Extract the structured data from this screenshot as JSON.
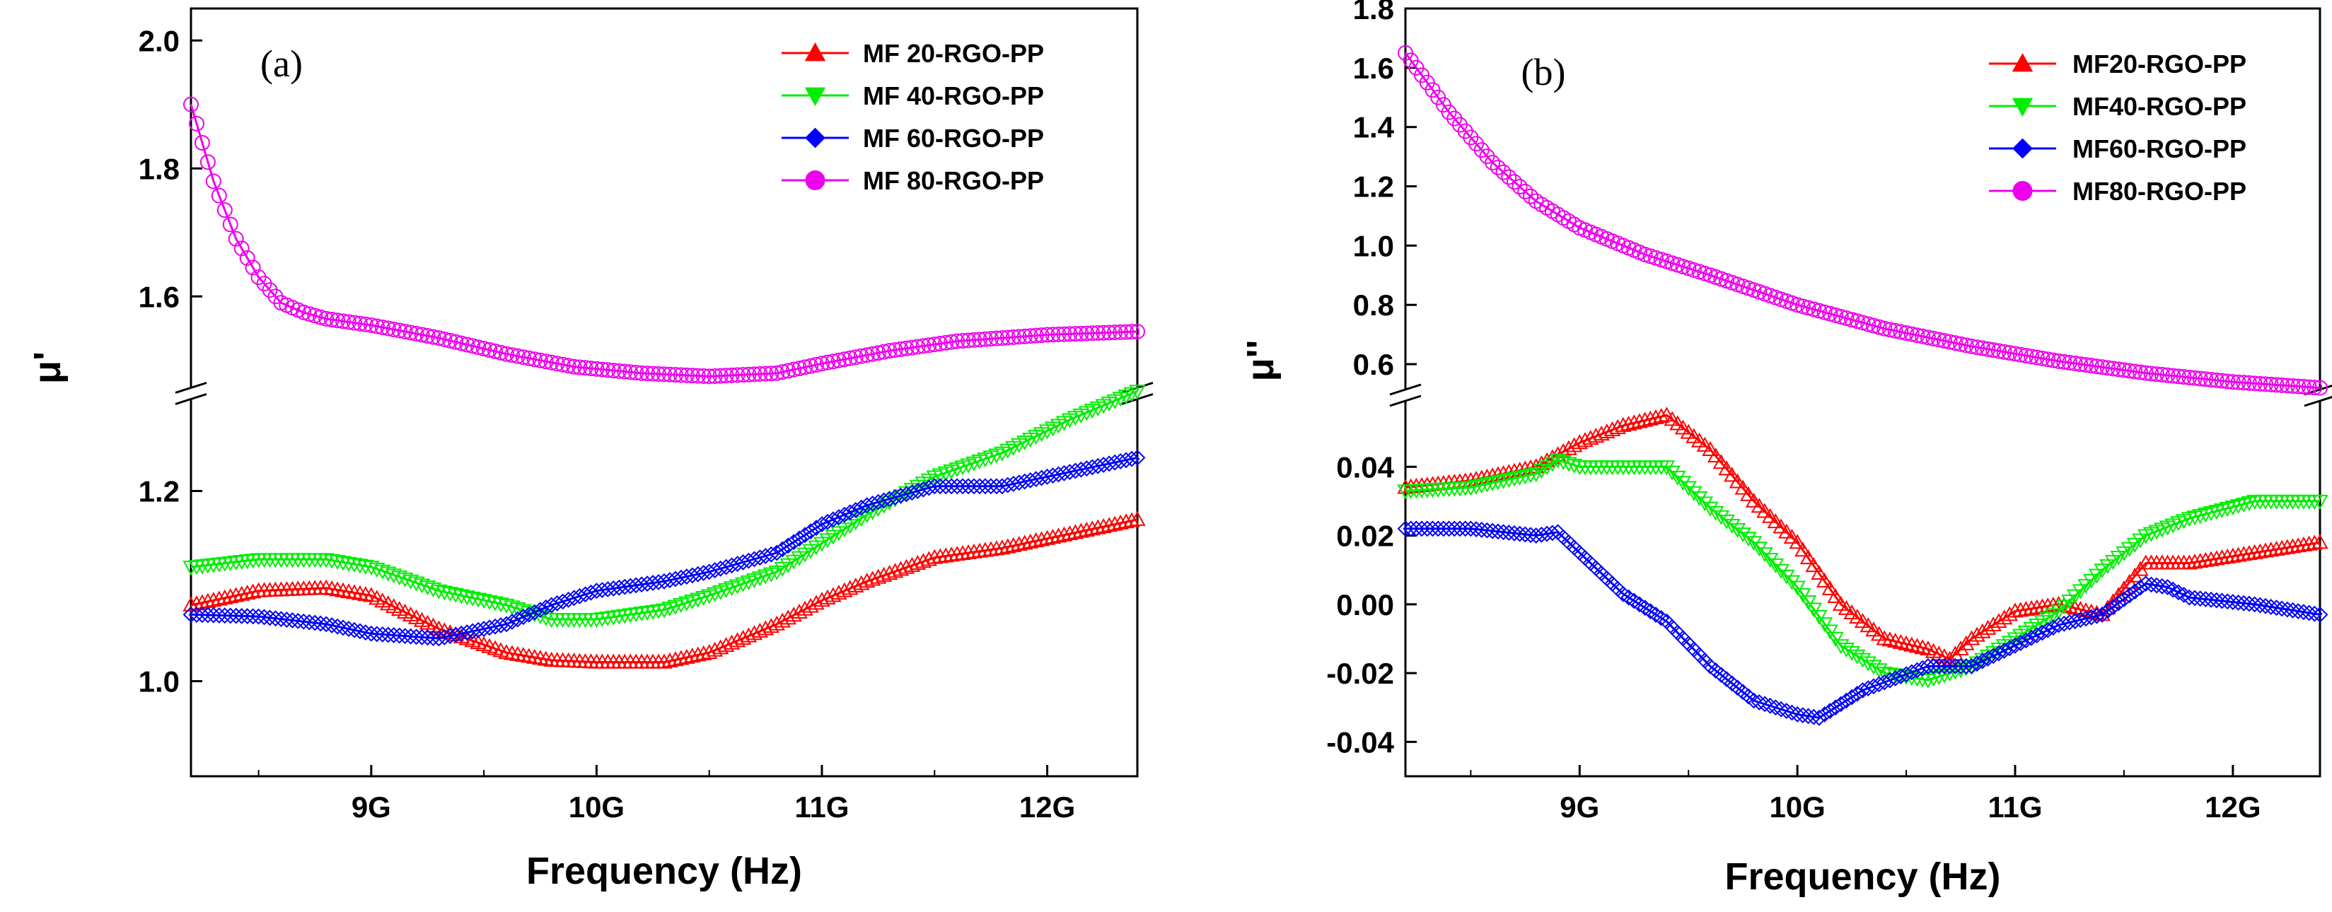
{
  "chart_data": [
    {
      "type": "line",
      "panel_label": "(a)",
      "ylabel": "μ'",
      "xlabel": "Frequency (Hz)",
      "xlim": [
        8.2,
        12.4
      ],
      "x_ticks": [
        9,
        10,
        11,
        12
      ],
      "x_tick_labels": [
        "9G",
        "10G",
        "11G",
        "12G"
      ],
      "axis_break": true,
      "upper_ylim": [
        1.45,
        2.05
      ],
      "upper_ticks": [
        1.6,
        1.8,
        2.0
      ],
      "upper_tick_labels": [
        "1.6",
        "1.8",
        "2.0"
      ],
      "lower_ylim": [
        0.9,
        1.3
      ],
      "lower_ticks": [
        1.0,
        1.2
      ],
      "lower_tick_labels": [
        "1.0",
        "1.2"
      ],
      "legend_position": "top-right",
      "series": [
        {
          "name": "MF 20-RGO-PP",
          "color": "#ff0000",
          "marker": "triangle-up",
          "x": [
            8.2,
            8.5,
            8.8,
            9.0,
            9.3,
            9.6,
            9.8,
            10.0,
            10.3,
            10.5,
            10.8,
            11.0,
            11.2,
            11.5,
            11.8,
            12.1,
            12.4
          ],
          "y": [
            1.08,
            1.095,
            1.098,
            1.09,
            1.055,
            1.03,
            1.022,
            1.02,
            1.02,
            1.03,
            1.06,
            1.085,
            1.105,
            1.13,
            1.14,
            1.155,
            1.17
          ]
        },
        {
          "name": "MF 40-RGO-PP",
          "color": "#00ee00",
          "marker": "triangle-down",
          "x": [
            8.2,
            8.5,
            8.8,
            9.0,
            9.3,
            9.6,
            9.8,
            10.0,
            10.3,
            10.5,
            10.8,
            11.0,
            11.2,
            11.5,
            11.8,
            12.1,
            12.4
          ],
          "y": [
            1.12,
            1.128,
            1.128,
            1.12,
            1.095,
            1.08,
            1.065,
            1.065,
            1.075,
            1.09,
            1.115,
            1.145,
            1.175,
            1.215,
            1.24,
            1.275,
            1.305
          ]
        },
        {
          "name": "MF 60-RGO-PP",
          "color": "#0000ff",
          "marker": "diamond-half",
          "x": [
            8.2,
            8.5,
            8.8,
            9.0,
            9.3,
            9.6,
            9.8,
            10.0,
            10.3,
            10.5,
            10.8,
            11.0,
            11.2,
            11.5,
            11.8,
            12.1,
            12.4
          ],
          "y": [
            1.07,
            1.068,
            1.06,
            1.05,
            1.045,
            1.06,
            1.08,
            1.095,
            1.105,
            1.115,
            1.135,
            1.165,
            1.185,
            1.205,
            1.205,
            1.22,
            1.235
          ]
        },
        {
          "name": "MF 80-RGO-PP",
          "color": "#ee00ee",
          "marker": "circle-half",
          "x": [
            8.2,
            8.3,
            8.4,
            8.5,
            8.6,
            8.7,
            8.8,
            9.0,
            9.3,
            9.6,
            9.9,
            10.2,
            10.5,
            10.8,
            11.0,
            11.3,
            11.6,
            12.0,
            12.4
          ],
          "y": [
            1.9,
            1.78,
            1.69,
            1.63,
            1.59,
            1.575,
            1.565,
            1.555,
            1.535,
            1.51,
            1.49,
            1.48,
            1.475,
            1.48,
            1.495,
            1.515,
            1.53,
            1.54,
            1.545
          ]
        }
      ]
    },
    {
      "type": "line",
      "panel_label": "(b)",
      "ylabel": "μ''",
      "xlabel": "Frequency (Hz)",
      "xlim": [
        8.2,
        12.4
      ],
      "x_ticks": [
        9,
        10,
        11,
        12
      ],
      "x_tick_labels": [
        "9G",
        "10G",
        "11G",
        "12G"
      ],
      "axis_break": true,
      "upper_ylim": [
        0.5,
        1.8
      ],
      "upper_ticks": [
        0.6,
        0.8,
        1.0,
        1.2,
        1.4,
        1.6,
        1.8
      ],
      "upper_tick_labels": [
        "0.6",
        "0.8",
        "1.0",
        "1.2",
        "1.4",
        "1.6",
        "1.8"
      ],
      "lower_ylim": [
        -0.05,
        0.06
      ],
      "lower_ticks": [
        -0.04,
        -0.02,
        0.0,
        0.02,
        0.04
      ],
      "lower_tick_labels": [
        "-0.04",
        "-0.02",
        "0.00",
        "0.02",
        "0.04"
      ],
      "legend_position": "top-right",
      "series": [
        {
          "name": "MF20-RGO-PP",
          "color": "#ff0000",
          "marker": "triangle-up",
          "x": [
            8.2,
            8.5,
            8.8,
            9.0,
            9.2,
            9.4,
            9.6,
            9.8,
            10.0,
            10.2,
            10.4,
            10.6,
            10.7,
            10.8,
            11.0,
            11.2,
            11.4,
            11.6,
            11.8,
            12.1,
            12.4
          ],
          "y": [
            0.034,
            0.036,
            0.04,
            0.047,
            0.052,
            0.055,
            0.045,
            0.03,
            0.018,
            0.0,
            -0.01,
            -0.013,
            -0.016,
            -0.01,
            -0.002,
            0.0,
            -0.003,
            0.012,
            0.012,
            0.015,
            0.018
          ]
        },
        {
          "name": "MF40-RGO-PP",
          "color": "#00ee00",
          "marker": "triangle-down",
          "x": [
            8.2,
            8.5,
            8.8,
            8.9,
            9.0,
            9.2,
            9.4,
            9.6,
            9.8,
            10.0,
            10.2,
            10.4,
            10.6,
            10.8,
            11.0,
            11.2,
            11.4,
            11.6,
            11.8,
            12.1,
            12.4
          ],
          "y": [
            0.033,
            0.034,
            0.038,
            0.042,
            0.04,
            0.04,
            0.04,
            0.028,
            0.018,
            0.005,
            -0.012,
            -0.02,
            -0.022,
            -0.018,
            -0.01,
            -0.002,
            0.01,
            0.02,
            0.025,
            0.03,
            0.03
          ]
        },
        {
          "name": "MF60-RGO-PP",
          "color": "#0000ff",
          "marker": "diamond-half",
          "x": [
            8.2,
            8.5,
            8.8,
            8.9,
            9.0,
            9.2,
            9.4,
            9.6,
            9.8,
            10.0,
            10.1,
            10.3,
            10.6,
            10.8,
            11.0,
            11.2,
            11.4,
            11.6,
            11.7,
            11.8,
            12.1,
            12.4
          ],
          "y": [
            0.022,
            0.022,
            0.02,
            0.021,
            0.015,
            0.003,
            -0.005,
            -0.018,
            -0.028,
            -0.032,
            -0.033,
            -0.025,
            -0.018,
            -0.018,
            -0.012,
            -0.006,
            -0.003,
            0.006,
            0.005,
            0.002,
            0.0,
            -0.003
          ]
        },
        {
          "name": "MF80-RGO-PP",
          "color": "#ee00ee",
          "marker": "circle-half",
          "x": [
            8.2,
            8.4,
            8.6,
            8.8,
            9.0,
            9.3,
            9.6,
            10.0,
            10.4,
            10.8,
            11.2,
            11.6,
            12.0,
            12.4
          ],
          "y": [
            1.65,
            1.45,
            1.28,
            1.15,
            1.06,
            0.97,
            0.9,
            0.8,
            0.72,
            0.66,
            0.61,
            0.57,
            0.54,
            0.52
          ]
        }
      ]
    }
  ]
}
